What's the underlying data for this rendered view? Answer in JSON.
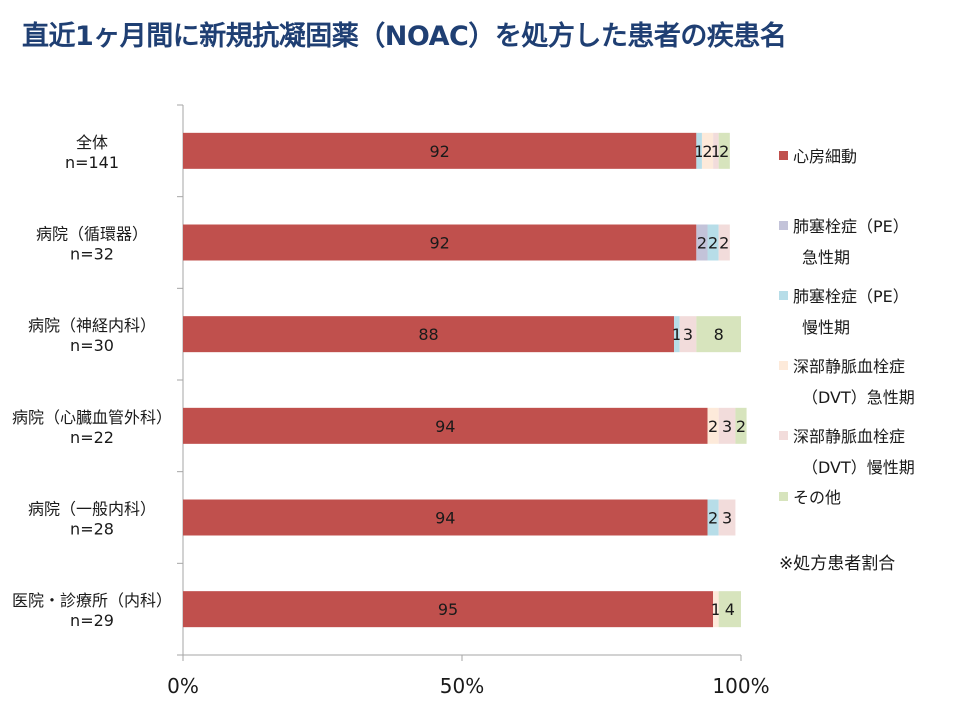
{
  "title": "直近1ヶ月間に新規抗凝固薬（NOAC）を処方した患者の疾患名",
  "note": "※処方患者割合",
  "chart_data": {
    "type": "bar",
    "orientation": "horizontal",
    "stacked": true,
    "percent_stacked": true,
    "categories": [
      [
        "全体",
        "n=141"
      ],
      [
        "病院（循環器）",
        "n=32"
      ],
      [
        "病院（神経内科）",
        "n=30"
      ],
      [
        "病院（心臓血管外科）",
        "n=22"
      ],
      [
        "病院（一般内科）",
        "n=28"
      ],
      [
        "医院・診療所（内科）",
        "n=29"
      ]
    ],
    "series": [
      {
        "name": [
          "心房細動"
        ],
        "color": "#c0504d",
        "values": [
          92,
          92,
          88,
          94,
          94,
          95
        ],
        "labels": [
          "92",
          "92",
          "88",
          "94",
          "94",
          "95"
        ]
      },
      {
        "name": [
          "肺塞栓症（PE）",
          "急性期"
        ],
        "color": "#c3c3d9",
        "values": [
          0,
          2,
          0,
          0,
          0,
          0
        ],
        "labels": [
          "",
          "2",
          "",
          "",
          "",
          ""
        ]
      },
      {
        "name": [
          "肺塞栓症（PE）",
          "慢性期"
        ],
        "color": "#b7dde8",
        "values": [
          1,
          2,
          1,
          0,
          2,
          0
        ],
        "labels": [
          "1",
          "2",
          "1",
          "",
          "2",
          ""
        ]
      },
      {
        "name": [
          "深部静脈血栓症",
          "（DVT）急性期"
        ],
        "color": "#fdeada",
        "values": [
          2,
          0,
          0,
          2,
          0,
          1
        ],
        "labels": [
          "2",
          "",
          "",
          "2",
          "",
          "1"
        ]
      },
      {
        "name": [
          "深部静脈血栓症",
          "（DVT）慢性期"
        ],
        "color": "#f2dcdb",
        "values": [
          1,
          2,
          3,
          3,
          3,
          0
        ],
        "labels": [
          "1",
          "2",
          "3",
          "3",
          "3",
          ""
        ]
      },
      {
        "name": [
          "その他"
        ],
        "color": "#d7e4bd",
        "values": [
          2,
          0,
          8,
          2,
          0,
          4
        ],
        "labels": [
          "2",
          "",
          "8",
          "2",
          "",
          "4"
        ]
      }
    ],
    "xlim": [
      0,
      100
    ],
    "xticks": [
      "0%",
      "50%",
      "100%"
    ],
    "grid": false,
    "legend": "right"
  }
}
